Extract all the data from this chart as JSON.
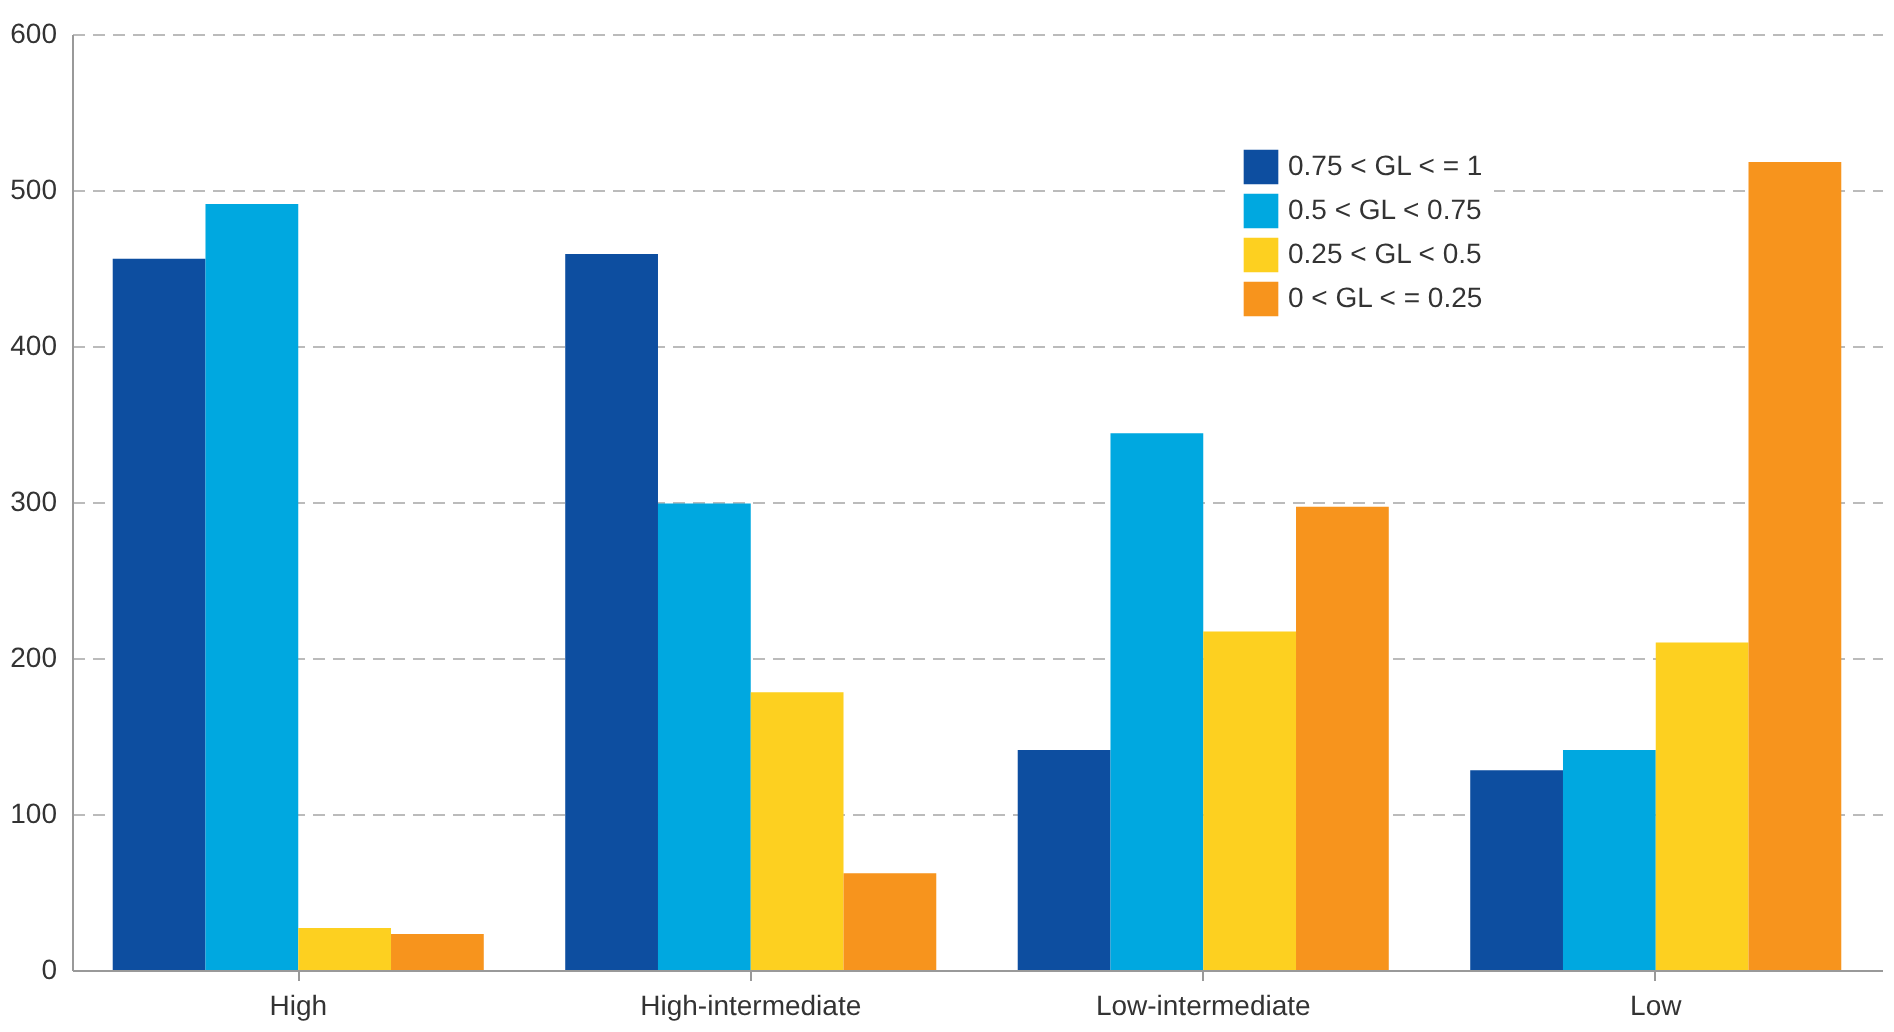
{
  "chart_data": {
    "type": "bar",
    "categories": [
      "High",
      "High-intermediate",
      "Low-intermediate",
      "Low"
    ],
    "series": [
      {
        "name": "0.75 < GL < = 1",
        "color": "#0d4ea0",
        "values": [
          456,
          459,
          141,
          128
        ]
      },
      {
        "name": "0.5 < GL < 0.75",
        "color": "#00a8e0",
        "values": [
          491,
          299,
          344,
          141
        ]
      },
      {
        "name": "0.25 < GL < 0.5",
        "color": "#fdd020",
        "values": [
          27,
          178,
          217,
          210
        ]
      },
      {
        "name": "0 < GL < = 0.25",
        "color": "#f7941d",
        "values": [
          23,
          62,
          297,
          518
        ]
      }
    ],
    "ylim": [
      0,
      600
    ],
    "yticks": [
      0,
      100,
      200,
      300,
      400,
      500,
      600
    ],
    "grid": "y",
    "legend": "top right"
  }
}
